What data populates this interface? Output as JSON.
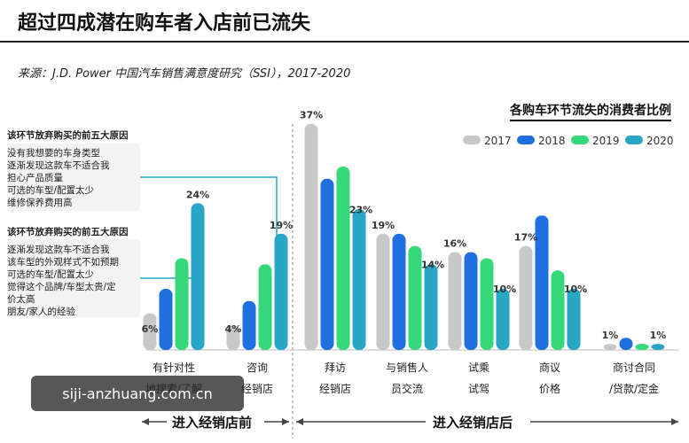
{
  "header": {
    "title": "超过四成潜在购车者入店前已流失",
    "source": "来源：J.D. Power 中国汽车销售满意度研究（SSI），2017-2020"
  },
  "chart_data": {
    "type": "bar",
    "title": "各购车环节流失的消费者比例",
    "categories": [
      [
        "有针对性",
        "地搜索/了解"
      ],
      [
        "咨询",
        "经销店"
      ],
      [
        "拜访",
        "经销店"
      ],
      [
        "与销售人",
        "员交流"
      ],
      [
        "试乘",
        "试驾"
      ],
      [
        "商议",
        "价格"
      ],
      [
        "商讨合同",
        "/贷款/定金"
      ]
    ],
    "series": [
      {
        "name": "2017",
        "color": "#c8c8c8",
        "values": [
          6,
          4,
          37,
          19,
          16,
          17,
          1
        ]
      },
      {
        "name": "2018",
        "color": "#1f6fe0",
        "values": [
          10,
          8,
          28,
          19,
          16,
          22,
          2
        ]
      },
      {
        "name": "2019",
        "color": "#35d97a",
        "values": [
          15,
          14,
          30,
          17,
          15,
          13,
          1
        ]
      },
      {
        "name": "2020",
        "color": "#27a6c6",
        "values": [
          24,
          19,
          23,
          14,
          10,
          10,
          1
        ]
      }
    ],
    "data_labels": [
      {
        "category": 0,
        "series": 0,
        "text": "6%"
      },
      {
        "category": 0,
        "series": 3,
        "text": "24%"
      },
      {
        "category": 1,
        "series": 0,
        "text": "4%"
      },
      {
        "category": 1,
        "series": 3,
        "text": "19%"
      },
      {
        "category": 2,
        "series": 0,
        "text": "37%"
      },
      {
        "category": 2,
        "series": 3,
        "text": "23%"
      },
      {
        "category": 3,
        "series": 0,
        "text": "19%"
      },
      {
        "category": 3,
        "series": 3,
        "text": "14%"
      },
      {
        "category": 4,
        "series": 0,
        "text": "16%"
      },
      {
        "category": 4,
        "series": 3,
        "text": "10%"
      },
      {
        "category": 5,
        "series": 0,
        "text": "17%"
      },
      {
        "category": 5,
        "series": 3,
        "text": "10%"
      },
      {
        "category": 6,
        "series": 0,
        "text": "1%"
      },
      {
        "category": 6,
        "series": 3,
        "text": "1%"
      }
    ],
    "ylim": [
      0,
      40
    ],
    "legend_position": "top-right",
    "grid": false
  },
  "reasons": {
    "group1": {
      "heading": "该环节放弃购买的前五大原因",
      "items": [
        "没有我想要的车身类型",
        "逐渐发现这款车不适合我",
        "担心产品质量",
        "可选的车型/配置太少",
        "维修保养费用高"
      ]
    },
    "group2": {
      "heading": "该环节放弃购买的前五大原因",
      "items": [
        "逐渐发现这款车不适合我",
        "该车型的外观样式不如预期",
        "可选的车型/配置太少",
        "觉得这个品牌/车型太贵/定",
        "价太高",
        "朋友/家人的经验"
      ]
    }
  },
  "phases": {
    "before": "进入经销店前",
    "after": "进入经销店后"
  },
  "watermark": "siji-anzhuang.com.cn"
}
